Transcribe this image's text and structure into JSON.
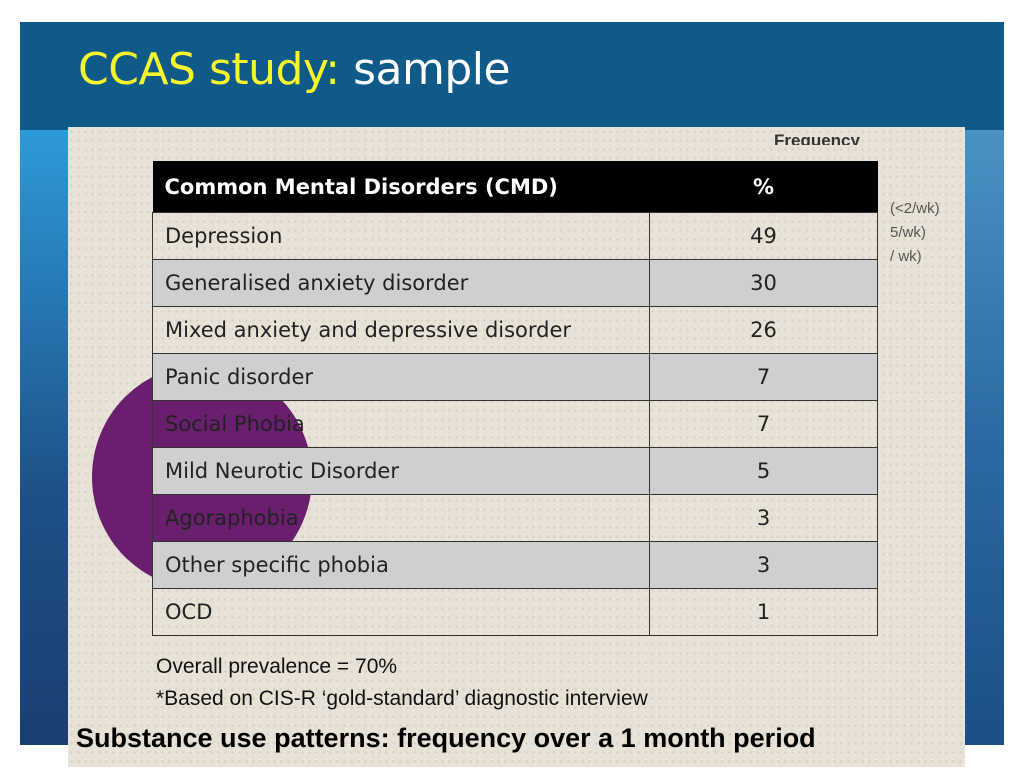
{
  "slide": {
    "title_highlight": "CCAS study:",
    "title_rest": "sample"
  },
  "image": {
    "frequency_partial": "Frequency",
    "legend_partial": [
      "(<2/wk)",
      "5/wk)",
      "/ wk)"
    ],
    "table": {
      "headers": [
        "Common Mental Disorders (CMD)",
        "%"
      ],
      "rows": [
        {
          "label": "Depression",
          "value": "49"
        },
        {
          "label": "Generalised anxiety disorder",
          "value": "30"
        },
        {
          "label": "Mixed anxiety and depressive disorder",
          "value": "26"
        },
        {
          "label": "Panic disorder",
          "value": "7"
        },
        {
          "label": "Social Phobia",
          "value": "7"
        },
        {
          "label": "Mild Neurotic Disorder",
          "value": "5"
        },
        {
          "label": "Agoraphobia",
          "value": "3"
        },
        {
          "label": "Other specific phobia",
          "value": "3"
        },
        {
          "label": "OCD",
          "value": "1"
        }
      ]
    },
    "overall": "Overall prevalence = 70%",
    "footnote": "*Based on CIS-R ‘gold-standard’ diagnostic interview",
    "subtitle": "Substance use patterns: frequency over a 1 month period"
  },
  "colors": {
    "header": "#0f5a88",
    "title_highlight": "#f5f52a",
    "pie": "#6a1e6e"
  }
}
